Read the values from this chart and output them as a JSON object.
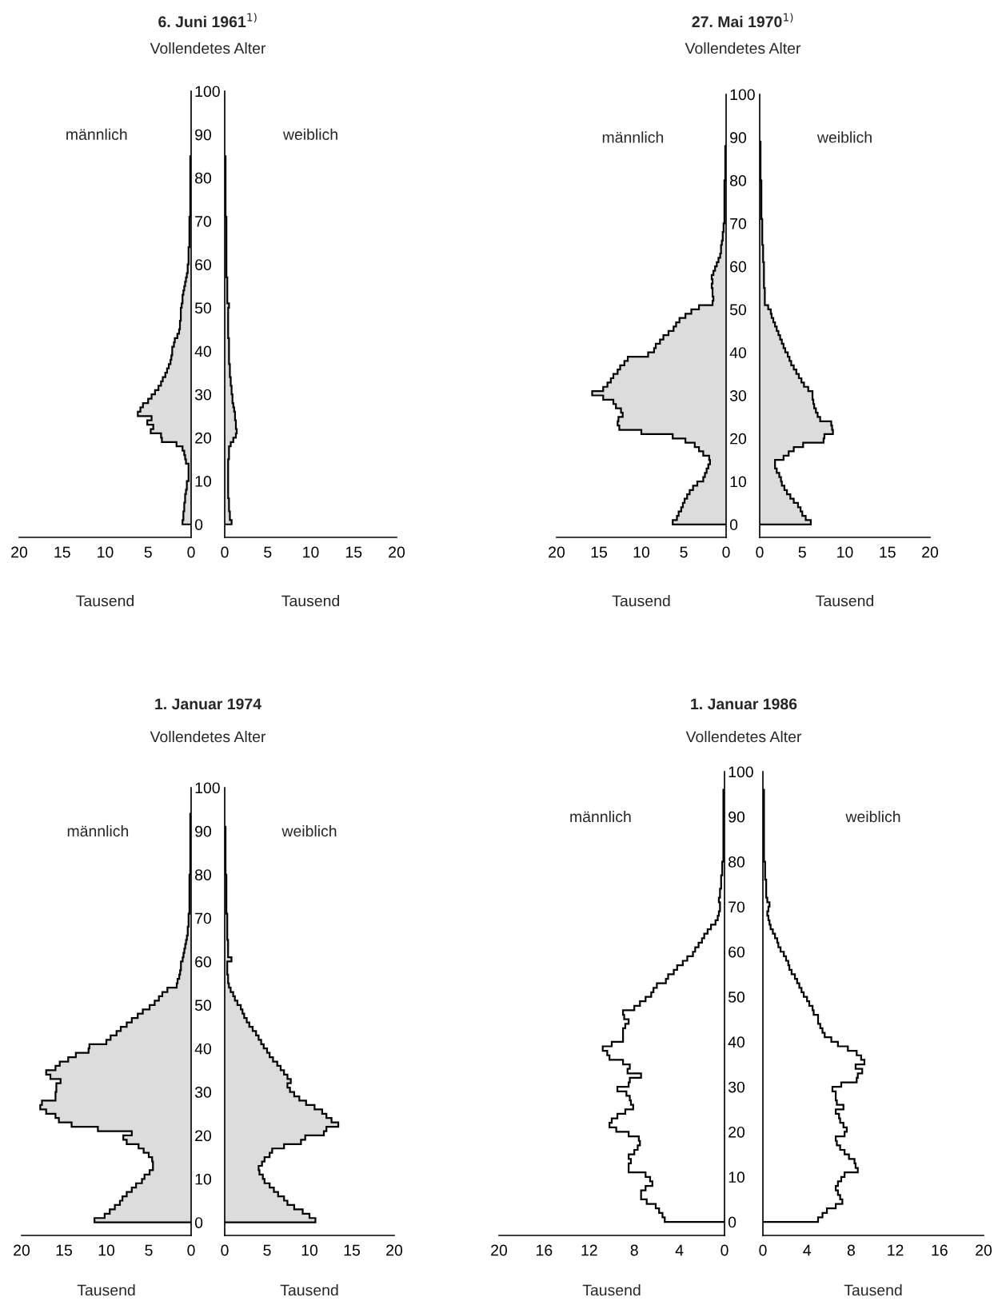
{
  "chart_data": [
    {
      "type": "histogram",
      "orientation": "horizontal",
      "title": "6. Juni 1961$^{1)}$",
      "ylabel": "Vollendetes Alter",
      "xlabel": "Tausend",
      "annotations": [
        "männlich"
      ],
      "color": "#dcdcdc",
      "xlim": [
        20,
        0
      ],
      "xticks": [
        20,
        15,
        10,
        5,
        0
      ],
      "ylim": [
        -3,
        100
      ],
      "yticks": [
        0,
        10,
        20,
        30,
        40,
        50,
        60,
        70,
        80,
        90,
        100
      ],
      "bins": [
        0,
        1,
        2,
        3,
        4,
        5,
        6,
        7,
        8,
        9,
        10,
        11,
        12,
        13,
        14,
        15,
        16,
        17,
        18,
        19,
        20,
        21,
        22,
        23,
        24,
        25,
        26,
        27,
        28,
        29,
        30,
        31,
        32,
        33,
        34,
        35,
        36,
        37,
        38,
        39,
        40,
        41,
        42,
        43,
        44,
        45,
        46,
        47,
        48,
        49,
        50,
        51,
        52,
        53,
        54,
        55,
        56,
        57,
        58,
        59,
        60,
        61,
        62,
        63,
        64,
        65,
        66,
        67,
        68,
        69,
        70,
        71,
        72,
        73,
        74,
        75,
        76,
        77,
        78,
        79,
        80,
        81,
        82,
        83,
        84,
        85
      ],
      "values": [
        1.0,
        0.9,
        0.9,
        0.8,
        0.8,
        0.7,
        0.7,
        0.6,
        0.5,
        0.5,
        0.3,
        0.3,
        0.3,
        0.3,
        0.6,
        0.7,
        0.8,
        1.0,
        1.7,
        3.4,
        3.5,
        4.7,
        4.4,
        5.1,
        4.6,
        6.2,
        5.9,
        5.6,
        5.0,
        4.6,
        4.2,
        3.8,
        3.5,
        3.3,
        3.0,
        2.8,
        2.6,
        2.4,
        2.3,
        2.2,
        2.2,
        2.0,
        1.9,
        1.6,
        1.4,
        1.3,
        1.3,
        1.2,
        1.2,
        1.2,
        1.1,
        1.0,
        1.0,
        0.9,
        0.8,
        0.7,
        0.6,
        0.5,
        0.4,
        0.4,
        0.3,
        0.3,
        0.3,
        0.3,
        0.2,
        0.2,
        0.2,
        0.2,
        0.2,
        0.2,
        0.2,
        0.1,
        0.1,
        0.1,
        0.1,
        0.1,
        0.1,
        0.1,
        0.1,
        0.1,
        0.1,
        0.1,
        0.1,
        0.1,
        0.1
      ]
    },
    {
      "type": "histogram",
      "orientation": "horizontal",
      "xlabel": "Tausend",
      "annotations": [
        "weiblich"
      ],
      "color": "#dcdcdc",
      "xlim": [
        0,
        20
      ],
      "xticks": [
        0,
        5,
        10,
        15,
        20
      ],
      "ylim": [
        -3,
        100
      ],
      "tick_labels": "x",
      "bins": [
        0,
        1,
        2,
        3,
        4,
        5,
        6,
        7,
        8,
        9,
        10,
        11,
        12,
        13,
        14,
        15,
        16,
        17,
        18,
        19,
        20,
        21,
        22,
        23,
        24,
        25,
        26,
        27,
        28,
        29,
        30,
        31,
        32,
        33,
        34,
        35,
        36,
        37,
        38,
        39,
        40,
        41,
        42,
        43,
        44,
        45,
        46,
        47,
        48,
        49,
        50,
        51,
        52,
        53,
        54,
        55,
        56,
        57,
        58,
        59,
        60,
        61,
        62,
        63,
        64,
        65,
        66,
        67,
        68,
        69,
        70,
        71,
        72,
        73,
        74,
        75,
        76,
        77,
        78,
        79,
        80,
        81,
        82,
        83,
        84,
        85
      ],
      "values": [
        0.8,
        0.6,
        0.6,
        0.5,
        0.5,
        0.5,
        0.4,
        0.4,
        0.4,
        0.4,
        0.4,
        0.4,
        0.4,
        0.4,
        0.4,
        0.5,
        0.5,
        0.5,
        0.7,
        1.0,
        1.3,
        1.4,
        1.3,
        1.3,
        1.2,
        1.2,
        1.1,
        1.0,
        0.9,
        0.9,
        0.8,
        0.8,
        0.7,
        0.7,
        0.6,
        0.6,
        0.6,
        0.5,
        0.5,
        0.5,
        0.5,
        0.5,
        0.5,
        0.4,
        0.4,
        0.4,
        0.4,
        0.4,
        0.4,
        0.4,
        0.5,
        0.3,
        0.3,
        0.3,
        0.3,
        0.3,
        0.3,
        0.2,
        0.2,
        0.2,
        0.2,
        0.2,
        0.2,
        0.2,
        0.2,
        0.2,
        0.2,
        0.2,
        0.2,
        0.2,
        0.2,
        0.1,
        0.1,
        0.1,
        0.1,
        0.1,
        0.1,
        0.1,
        0.1,
        0.1,
        0.1,
        0.1,
        0.1,
        0.1,
        0.1
      ]
    },
    {
      "type": "histogram",
      "orientation": "horizontal",
      "title": "27. Mai 1970$^{1)}$",
      "ylabel": "Vollendetes Alter",
      "xlabel": "Tausend",
      "annotations": [
        "männlich"
      ],
      "color": "#dcdcdc",
      "xlim": [
        20,
        0
      ],
      "xticks": [
        20,
        15,
        10,
        5,
        0
      ],
      "ylim": [
        -3,
        100
      ],
      "yticks": [
        0,
        10,
        20,
        30,
        40,
        50,
        60,
        70,
        80,
        90,
        100
      ],
      "bins": [
        0,
        1,
        2,
        3,
        4,
        5,
        6,
        7,
        8,
        9,
        10,
        11,
        12,
        13,
        14,
        15,
        16,
        17,
        18,
        19,
        20,
        21,
        22,
        23,
        24,
        25,
        26,
        27,
        28,
        29,
        30,
        31,
        32,
        33,
        34,
        35,
        36,
        37,
        38,
        39,
        40,
        41,
        42,
        43,
        44,
        45,
        46,
        47,
        48,
        49,
        50,
        51,
        52,
        53,
        54,
        55,
        56,
        57,
        58,
        59,
        60,
        61,
        62,
        63,
        64,
        65,
        66,
        67,
        68,
        69,
        70,
        71,
        72,
        73,
        74,
        75,
        76,
        77,
        78,
        79,
        80,
        81,
        82,
        83,
        84,
        85,
        86,
        87,
        88
      ],
      "values": [
        6.3,
        5.8,
        5.6,
        5.3,
        5.1,
        4.9,
        4.6,
        4.3,
        3.9,
        3.4,
        2.7,
        2.5,
        2.3,
        2.1,
        1.9,
        2.0,
        2.7,
        3.2,
        3.7,
        4.8,
        6.3,
        10.0,
        12.6,
        12.8,
        12.7,
        12.2,
        12.4,
        13.0,
        13.3,
        14.5,
        15.8,
        14.5,
        14.0,
        13.6,
        13.3,
        12.8,
        12.5,
        12.0,
        11.6,
        9.2,
        8.5,
        8.3,
        7.8,
        7.4,
        6.8,
        6.2,
        5.9,
        5.5,
        4.8,
        4.1,
        3.2,
        1.6,
        1.5,
        1.6,
        1.6,
        1.7,
        1.6,
        1.7,
        1.5,
        1.3,
        1.1,
        0.9,
        0.7,
        0.6,
        0.6,
        0.5,
        0.4,
        0.4,
        0.3,
        0.3,
        0.2,
        0.2,
        0.2,
        0.2,
        0.2,
        0.2,
        0.2,
        0.2,
        0.2,
        0.2,
        0.1,
        0.1,
        0.1,
        0.1,
        0.1,
        0.1,
        0.1,
        0.1
      ]
    },
    {
      "type": "histogram",
      "orientation": "horizontal",
      "xlabel": "Tausend",
      "annotations": [
        "weiblich"
      ],
      "color": "#dcdcdc",
      "xlim": [
        0,
        20
      ],
      "xticks": [
        0,
        5,
        10,
        15,
        20
      ],
      "ylim": [
        -3,
        100
      ],
      "tick_labels": "x",
      "bins": [
        0,
        1,
        2,
        3,
        4,
        5,
        6,
        7,
        8,
        9,
        10,
        11,
        12,
        13,
        14,
        15,
        16,
        17,
        18,
        19,
        20,
        21,
        22,
        23,
        24,
        25,
        26,
        27,
        28,
        29,
        30,
        31,
        32,
        33,
        34,
        35,
        36,
        37,
        38,
        39,
        40,
        41,
        42,
        43,
        44,
        45,
        46,
        47,
        48,
        49,
        50,
        51,
        52,
        53,
        54,
        55,
        56,
        57,
        58,
        59,
        60,
        61,
        62,
        63,
        64,
        65,
        66,
        67,
        68,
        69,
        70,
        71,
        72,
        73,
        74,
        75,
        76,
        77,
        78,
        79,
        80,
        81,
        82,
        83,
        84,
        85,
        86,
        87,
        88,
        89
      ],
      "values": [
        6.0,
        5.4,
        5.0,
        4.8,
        4.5,
        4.0,
        3.6,
        3.2,
        2.9,
        2.6,
        2.5,
        2.3,
        2.0,
        1.8,
        1.8,
        2.8,
        3.4,
        4.0,
        5.1,
        7.5,
        7.6,
        8.6,
        8.5,
        8.4,
        7.1,
        6.8,
        6.6,
        6.4,
        6.3,
        6.2,
        6.2,
        5.7,
        5.2,
        4.9,
        4.6,
        4.3,
        4.0,
        3.7,
        3.5,
        3.3,
        3.0,
        2.8,
        2.6,
        2.4,
        2.2,
        2.0,
        1.8,
        1.6,
        1.4,
        1.3,
        1.0,
        0.6,
        0.6,
        0.6,
        0.6,
        0.5,
        0.5,
        0.5,
        0.5,
        0.5,
        0.5,
        0.4,
        0.4,
        0.4,
        0.4,
        0.3,
        0.3,
        0.3,
        0.3,
        0.3,
        0.3,
        0.2,
        0.2,
        0.2,
        0.2,
        0.2,
        0.2,
        0.2,
        0.2,
        0.2,
        0.1,
        0.1,
        0.1,
        0.1,
        0.1,
        0.1,
        0.1,
        0.1,
        0.1
      ]
    },
    {
      "type": "histogram",
      "orientation": "horizontal",
      "title": "1. Januar 1974",
      "ylabel": "Vollendetes Alter",
      "xlabel": "Tausend",
      "annotations": [
        "männlich"
      ],
      "color": "#dcdcdc",
      "xlim": [
        20,
        0
      ],
      "xticks": [
        20,
        15,
        10,
        5,
        0
      ],
      "ylim": [
        -3,
        100
      ],
      "yticks": [
        0,
        10,
        20,
        30,
        40,
        50,
        60,
        70,
        80,
        90,
        100
      ],
      "bins": [
        0,
        1,
        2,
        3,
        4,
        5,
        6,
        7,
        8,
        9,
        10,
        11,
        12,
        13,
        14,
        15,
        16,
        17,
        18,
        19,
        20,
        21,
        22,
        23,
        24,
        25,
        26,
        27,
        28,
        29,
        30,
        31,
        32,
        33,
        34,
        35,
        36,
        37,
        38,
        39,
        40,
        41,
        42,
        43,
        44,
        45,
        46,
        47,
        48,
        49,
        50,
        51,
        52,
        53,
        54,
        55,
        56,
        57,
        58,
        59,
        60,
        61,
        62,
        63,
        64,
        65,
        66,
        67,
        68,
        69,
        70,
        71,
        72,
        73,
        74,
        75,
        76,
        77,
        78,
        79,
        80,
        81,
        82,
        83,
        84,
        85,
        86,
        87,
        88,
        89,
        90,
        91,
        92,
        93,
        94
      ],
      "values": [
        11.4,
        10.2,
        9.6,
        9.0,
        8.4,
        8.1,
        7.6,
        7.0,
        6.5,
        5.8,
        5.5,
        4.9,
        4.5,
        4.5,
        4.6,
        5.0,
        5.6,
        6.2,
        7.6,
        8.0,
        7.0,
        11.0,
        14.1,
        15.6,
        16.0,
        17.1,
        17.8,
        17.6,
        16.0,
        16.0,
        15.9,
        15.9,
        15.4,
        16.6,
        17.1,
        16.0,
        15.5,
        14.5,
        13.6,
        12.1,
        12.0,
        10.0,
        9.5,
        8.8,
        8.3,
        7.6,
        7.0,
        6.3,
        5.7,
        4.9,
        4.3,
        3.8,
        3.4,
        2.8,
        1.7,
        1.6,
        1.4,
        1.3,
        1.2,
        1.2,
        1.0,
        0.9,
        0.8,
        0.7,
        0.6,
        0.5,
        0.4,
        0.4,
        0.3,
        0.3,
        0.3,
        0.2,
        0.2,
        0.2,
        0.2,
        0.2,
        0.2,
        0.2,
        0.2,
        0.2,
        0.1,
        0.1,
        0.1,
        0.1,
        0.1,
        0.1,
        0.1,
        0.1,
        0.1,
        0.1,
        0.1,
        0.1,
        0.1,
        0.1
      ]
    },
    {
      "type": "histogram",
      "orientation": "horizontal",
      "xlabel": "Tausend",
      "annotations": [
        "weiblich"
      ],
      "color": "#dcdcdc",
      "xlim": [
        0,
        20
      ],
      "xticks": [
        0,
        5,
        10,
        15,
        20
      ],
      "ylim": [
        -3,
        100
      ],
      "tick_labels": "x",
      "bins": [
        0,
        1,
        2,
        3,
        4,
        5,
        6,
        7,
        8,
        9,
        10,
        11,
        12,
        13,
        14,
        15,
        16,
        17,
        18,
        19,
        20,
        21,
        22,
        23,
        24,
        25,
        26,
        27,
        28,
        29,
        30,
        31,
        32,
        33,
        34,
        35,
        36,
        37,
        38,
        39,
        40,
        41,
        42,
        43,
        44,
        45,
        46,
        47,
        48,
        49,
        50,
        51,
        52,
        53,
        54,
        55,
        56,
        57,
        58,
        59,
        60,
        61,
        62,
        63,
        64,
        65,
        66,
        67,
        68,
        69,
        70,
        71,
        72,
        73,
        74,
        75,
        76,
        77,
        78,
        79,
        80,
        81,
        82,
        83,
        84,
        85,
        86,
        87,
        88,
        89,
        90,
        91
      ],
      "values": [
        10.7,
        10.0,
        9.2,
        8.2,
        7.4,
        7.0,
        6.3,
        5.8,
        5.3,
        4.7,
        4.5,
        4.1,
        4.0,
        4.4,
        4.7,
        5.3,
        5.6,
        7.0,
        9.0,
        9.5,
        11.7,
        12.0,
        13.4,
        12.6,
        12.0,
        11.5,
        10.6,
        9.6,
        8.8,
        8.2,
        7.7,
        7.4,
        7.8,
        7.4,
        7.0,
        6.6,
        6.2,
        5.7,
        5.3,
        5.0,
        4.6,
        4.3,
        4.0,
        3.7,
        3.3,
        2.9,
        2.6,
        2.3,
        2.1,
        1.9,
        1.5,
        1.2,
        1.0,
        0.7,
        0.5,
        0.4,
        0.4,
        0.3,
        0.3,
        0.3,
        0.8,
        0.4,
        0.4,
        0.4,
        0.4,
        0.3,
        0.3,
        0.3,
        0.3,
        0.3,
        0.3,
        0.2,
        0.2,
        0.2,
        0.2,
        0.2,
        0.2,
        0.2,
        0.2,
        0.2,
        0.1,
        0.1,
        0.1,
        0.1,
        0.1,
        0.1,
        0.1,
        0.1,
        0.1,
        0.1,
        0.1
      ]
    },
    {
      "type": "histogram",
      "orientation": "horizontal",
      "title": "1. Januar 1986",
      "ylabel": "Vollendetes Alter",
      "xlabel": "Tausend",
      "annotations": [
        "männlich"
      ],
      "color": "#ffffff",
      "xlim": [
        20,
        0
      ],
      "xticks": [
        20,
        16,
        12,
        8,
        4,
        0
      ],
      "ylim": [
        -3,
        100
      ],
      "yticks": [
        0,
        10,
        20,
        30,
        40,
        50,
        60,
        70,
        80,
        90,
        100
      ],
      "bins": [
        0,
        1,
        2,
        3,
        4,
        5,
        6,
        7,
        8,
        9,
        10,
        11,
        12,
        13,
        14,
        15,
        16,
        17,
        18,
        19,
        20,
        21,
        22,
        23,
        24,
        25,
        26,
        27,
        28,
        29,
        30,
        31,
        32,
        33,
        34,
        35,
        36,
        37,
        38,
        39,
        40,
        41,
        42,
        43,
        44,
        45,
        46,
        47,
        48,
        49,
        50,
        51,
        52,
        53,
        54,
        55,
        56,
        57,
        58,
        59,
        60,
        61,
        62,
        63,
        64,
        65,
        66,
        67,
        68,
        69,
        70,
        71,
        72,
        73,
        74,
        75,
        76,
        77,
        78,
        79,
        80,
        81,
        82,
        83,
        84,
        85,
        86,
        87,
        88,
        89,
        90,
        91,
        92,
        93,
        94,
        95,
        96
      ],
      "values": [
        5.3,
        5.5,
        5.8,
        6.1,
        6.9,
        7.4,
        7.4,
        7.0,
        6.4,
        6.6,
        7.0,
        8.5,
        8.5,
        8.3,
        8.5,
        8.0,
        7.7,
        7.5,
        7.6,
        8.5,
        9.6,
        10.2,
        10.0,
        9.5,
        8.8,
        8.1,
        8.3,
        8.4,
        8.7,
        9.5,
        8.5,
        8.4,
        7.4,
        8.6,
        8.4,
        9.0,
        10.2,
        10.4,
        10.8,
        10.0,
        9.0,
        9.0,
        9.0,
        8.8,
        8.5,
        8.9,
        9.0,
        8.0,
        7.5,
        7.0,
        6.5,
        6.3,
        6.0,
        5.2,
        5.0,
        4.5,
        4.2,
        3.7,
        3.3,
        2.8,
        2.6,
        2.3,
        2.0,
        1.8,
        1.5,
        1.2,
        0.8,
        0.6,
        0.5,
        0.4,
        0.4,
        0.5,
        0.4,
        0.4,
        0.3,
        0.3,
        0.3,
        0.2,
        0.2,
        0.2,
        0.1,
        0.1,
        0.1,
        0.1,
        0.1,
        0.1,
        0.1,
        0.1,
        0.1,
        0.1,
        0.1,
        0.1,
        0.1,
        0.1,
        0.1,
        0.1
      ]
    },
    {
      "type": "histogram",
      "orientation": "horizontal",
      "xlabel": "Tausend",
      "annotations": [
        "weiblich"
      ],
      "color": "#ffffff",
      "xlim": [
        0,
        20
      ],
      "xticks": [
        0,
        4,
        8,
        12,
        16,
        20
      ],
      "ylim": [
        -3,
        100
      ],
      "tick_labels": "x",
      "bins": [
        0,
        1,
        2,
        3,
        4,
        5,
        6,
        7,
        8,
        9,
        10,
        11,
        12,
        13,
        14,
        15,
        16,
        17,
        18,
        19,
        20,
        21,
        22,
        23,
        24,
        25,
        26,
        27,
        28,
        29,
        30,
        31,
        32,
        33,
        34,
        35,
        36,
        37,
        38,
        39,
        40,
        41,
        42,
        43,
        44,
        45,
        46,
        47,
        48,
        49,
        50,
        51,
        52,
        53,
        54,
        55,
        56,
        57,
        58,
        59,
        60,
        61,
        62,
        63,
        64,
        65,
        66,
        67,
        68,
        69,
        70,
        71,
        72,
        73,
        74,
        75,
        76,
        77,
        78,
        79,
        80,
        81,
        82,
        83,
        84,
        85,
        86,
        87,
        88,
        89,
        90,
        91,
        92,
        93,
        94,
        95,
        96
      ],
      "values": [
        5.0,
        5.4,
        5.8,
        6.6,
        7.2,
        7.0,
        6.8,
        6.6,
        6.8,
        7.1,
        7.4,
        8.6,
        8.4,
        8.3,
        7.8,
        7.4,
        7.0,
        6.7,
        6.6,
        7.4,
        7.6,
        7.3,
        7.0,
        6.9,
        6.6,
        7.3,
        6.7,
        6.6,
        6.6,
        6.3,
        7.1,
        8.5,
        8.6,
        9.0,
        8.4,
        9.2,
        8.9,
        8.5,
        7.7,
        6.8,
        6.2,
        5.6,
        5.4,
        5.2,
        5.0,
        5.0,
        4.6,
        4.5,
        4.2,
        4.0,
        3.7,
        3.5,
        3.3,
        3.1,
        2.9,
        2.6,
        2.4,
        2.3,
        2.1,
        1.9,
        1.6,
        1.4,
        1.3,
        1.1,
        0.9,
        0.7,
        0.6,
        0.5,
        0.4,
        0.5,
        0.6,
        0.4,
        0.3,
        0.3,
        0.3,
        0.3,
        0.2,
        0.2,
        0.2,
        0.2,
        0.1,
        0.1,
        0.1,
        0.1,
        0.1,
        0.1,
        0.1,
        0.1,
        0.1,
        0.1,
        0.1,
        0.1,
        0.1,
        0.1,
        0.1,
        0.1
      ]
    }
  ]
}
